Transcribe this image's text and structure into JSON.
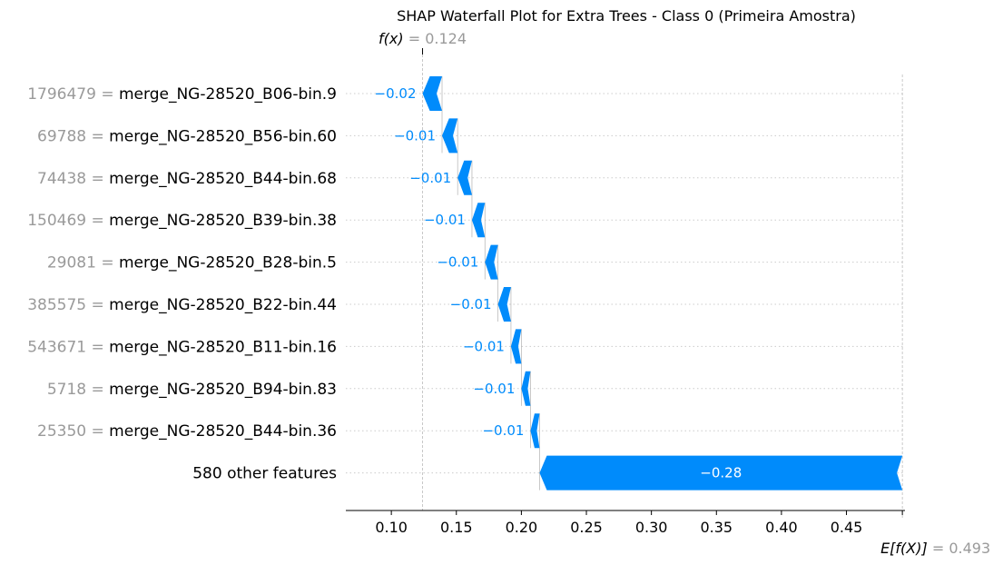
{
  "chart_data": {
    "type": "waterfall",
    "title": "SHAP Waterfall Plot for Extra Trees - Class 0 (Primeira Amostra)",
    "fx_label": "f(x)",
    "fx_value": "0.124",
    "efx_label": "E[f(X)]",
    "efx_value": "0.493",
    "fx": 0.124,
    "efx": 0.493,
    "xlim": [
      0.065,
      0.495
    ],
    "xticks": [
      0.1,
      0.15,
      0.2,
      0.25,
      0.3,
      0.35,
      0.4,
      0.45
    ],
    "xtick_labels": [
      "0.10",
      "0.15",
      "0.20",
      "0.25",
      "0.30",
      "0.35",
      "0.40",
      "0.45"
    ],
    "features": [
      {
        "value": "1796479",
        "name": "merge_NG-28520_B06-bin.9",
        "start": 0.139,
        "end": 0.124,
        "label": "−0.02"
      },
      {
        "value": "69788",
        "name": "merge_NG-28520_B56-bin.60",
        "start": 0.151,
        "end": 0.139,
        "label": "−0.01"
      },
      {
        "value": "74438",
        "name": "merge_NG-28520_B44-bin.68",
        "start": 0.162,
        "end": 0.151,
        "label": "−0.01"
      },
      {
        "value": "150469",
        "name": "merge_NG-28520_B39-bin.38",
        "start": 0.172,
        "end": 0.162,
        "label": "−0.01"
      },
      {
        "value": "29081",
        "name": "merge_NG-28520_B28-bin.5",
        "start": 0.182,
        "end": 0.172,
        "label": "−0.01"
      },
      {
        "value": "385575",
        "name": "merge_NG-28520_B22-bin.44",
        "start": 0.192,
        "end": 0.182,
        "label": "−0.01"
      },
      {
        "value": "543671",
        "name": "merge_NG-28520_B11-bin.16",
        "start": 0.2,
        "end": 0.192,
        "label": "−0.01"
      },
      {
        "value": "5718",
        "name": "merge_NG-28520_B94-bin.83",
        "start": 0.207,
        "end": 0.2,
        "label": "−0.01"
      },
      {
        "value": "25350",
        "name": "merge_NG-28520_B44-bin.36",
        "start": 0.214,
        "end": 0.207,
        "label": "−0.01"
      },
      {
        "value": "",
        "name": "580 other features",
        "start": 0.493,
        "end": 0.214,
        "label": "−0.28"
      }
    ],
    "colors": {
      "negative": "#008bfb",
      "value_text": "#9a9a9a",
      "grid": "#cccccc"
    },
    "grid": true
  }
}
